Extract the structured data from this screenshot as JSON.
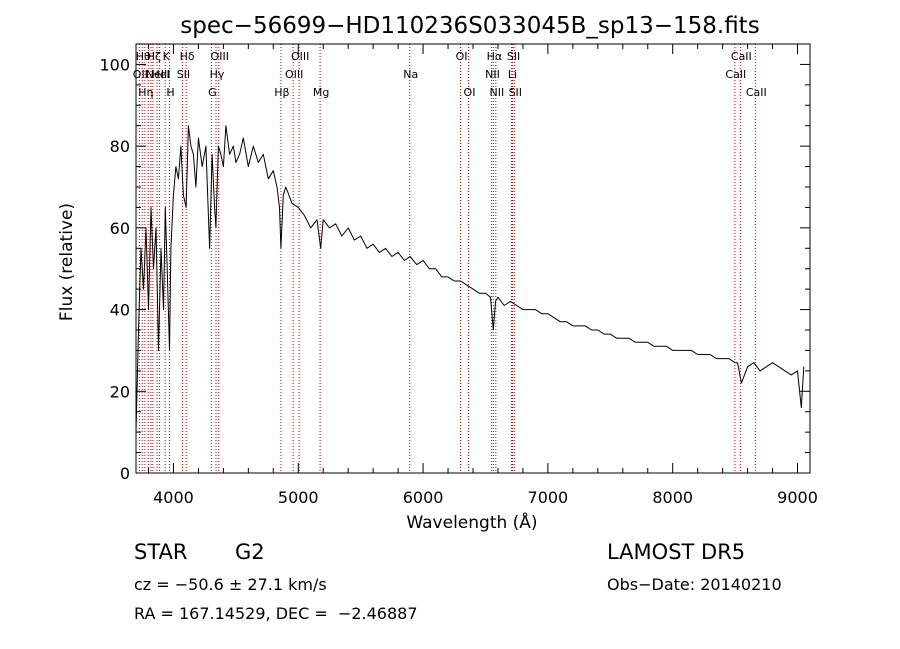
{
  "chart_data": {
    "type": "line",
    "title": "spec−56699−HD110236S033045B_sp13−158.fits",
    "xlabel": "Wavelength (Å)",
    "ylabel": "Flux (relative)",
    "xlim": [
      3700,
      9100
    ],
    "ylim": [
      0,
      105
    ],
    "x_ticks": [
      4000,
      5000,
      6000,
      7000,
      8000,
      9000
    ],
    "y_ticks": [
      0,
      20,
      40,
      60,
      80,
      100
    ],
    "grid": false,
    "line_color": "#000000",
    "marker_color": "#cc0000",
    "series": [
      {
        "x": [
          3700,
          3720,
          3740,
          3760,
          3780,
          3800,
          3820,
          3840,
          3860,
          3880,
          3900,
          3920,
          3935,
          3950,
          3968,
          3980,
          4000,
          4020,
          4040,
          4060,
          4080,
          4101,
          4120,
          4140,
          4160,
          4180,
          4200,
          4230,
          4260,
          4290,
          4310,
          4330,
          4340,
          4360,
          4380,
          4400,
          4420,
          4450,
          4480,
          4500,
          4530,
          4560,
          4600,
          4640,
          4680,
          4720,
          4740,
          4760,
          4800,
          4830,
          4850,
          4861,
          4880,
          4900,
          4950,
          5000,
          5050,
          5100,
          5150,
          5180,
          5200,
          5250,
          5300,
          5350,
          5400,
          5450,
          5500,
          5550,
          5600,
          5650,
          5700,
          5750,
          5800,
          5850,
          5895,
          5950,
          6000,
          6050,
          6100,
          6150,
          6200,
          6250,
          6300,
          6350,
          6400,
          6450,
          6500,
          6540,
          6563,
          6580,
          6600,
          6650,
          6700,
          6750,
          6800,
          6850,
          6900,
          6950,
          7000,
          7050,
          7100,
          7150,
          7200,
          7250,
          7300,
          7350,
          7400,
          7450,
          7500,
          7550,
          7600,
          7650,
          7700,
          7750,
          7800,
          7850,
          7900,
          7950,
          8000,
          8050,
          8100,
          8150,
          8200,
          8250,
          8300,
          8350,
          8400,
          8450,
          8500,
          8520,
          8550,
          8600,
          8650,
          8700,
          8750,
          8800,
          8850,
          8900,
          8950,
          9000,
          9030,
          9050
        ],
        "y": [
          10,
          35,
          55,
          45,
          60,
          40,
          65,
          50,
          60,
          30,
          55,
          40,
          65,
          50,
          30,
          55,
          68,
          75,
          72,
          80,
          68,
          65,
          85,
          80,
          78,
          70,
          82,
          75,
          80,
          55,
          78,
          65,
          60,
          80,
          78,
          75,
          85,
          78,
          80,
          76,
          78,
          82,
          75,
          80,
          76,
          78,
          75,
          72,
          74,
          70,
          65,
          55,
          68,
          70,
          66,
          65,
          63,
          60,
          62,
          55,
          62,
          60,
          61,
          58,
          60,
          57,
          58,
          55,
          56,
          54,
          55,
          53,
          54,
          52,
          53,
          51,
          52,
          50,
          50,
          48,
          48,
          47,
          47,
          46,
          45,
          44,
          44,
          43,
          35,
          42,
          43,
          41,
          42,
          41,
          40,
          40,
          40,
          39,
          39,
          38,
          37,
          37,
          36,
          36,
          36,
          35,
          35,
          34,
          34,
          33,
          33,
          33,
          32,
          32,
          32,
          31,
          31,
          31,
          30,
          30,
          30,
          30,
          29,
          29,
          29,
          28,
          28,
          28,
          27,
          27,
          22,
          26,
          27,
          25,
          26,
          27,
          26,
          25,
          24,
          25,
          16,
          26
        ]
      }
    ],
    "line_markers": [
      {
        "x": 3727,
        "label": "OII",
        "row": 1
      },
      {
        "x": 3750,
        "label": "Hθ",
        "row": 0
      },
      {
        "x": 3771,
        "label": "Hη",
        "row": 2
      },
      {
        "x": 3798,
        "label": "",
        "row": 0
      },
      {
        "x": 3820,
        "label": "",
        "row": 0
      },
      {
        "x": 3835,
        "label": "Hζ",
        "row": 0
      },
      {
        "x": 3869,
        "label": "NeIII",
        "row": 1
      },
      {
        "x": 3889,
        "label": "HeI",
        "row": 1
      },
      {
        "x": 3934,
        "label": "K",
        "row": 0
      },
      {
        "x": 3969,
        "label": "H",
        "row": 2
      },
      {
        "x": 4072,
        "label": "SII",
        "row": 1
      },
      {
        "x": 4102,
        "label": "Hδ",
        "row": 0
      },
      {
        "x": 4304,
        "label": "G",
        "row": 2
      },
      {
        "x": 4341,
        "label": "Hγ",
        "row": 1
      },
      {
        "x": 4363,
        "label": "OIII",
        "row": 0
      },
      {
        "x": 4861,
        "label": "Hβ",
        "row": 2
      },
      {
        "x": 4959,
        "label": "OIII",
        "row": 1
      },
      {
        "x": 5007,
        "label": "OIII",
        "row": 0
      },
      {
        "x": 5175,
        "label": "Mg",
        "row": 2
      },
      {
        "x": 5893,
        "label": "Na",
        "row": 1
      },
      {
        "x": 6300,
        "label": "OI",
        "row": 0
      },
      {
        "x": 6364,
        "label": "OI",
        "row": 2
      },
      {
        "x": 6548,
        "label": "NII",
        "row": 1
      },
      {
        "x": 6563,
        "label": "Hα",
        "row": 0
      },
      {
        "x": 6583,
        "label": "NII",
        "row": 2
      },
      {
        "x": 6708,
        "label": "Li",
        "row": 1
      },
      {
        "x": 6717,
        "label": "SII",
        "row": 0
      },
      {
        "x": 6731,
        "label": "SII",
        "row": 2
      },
      {
        "x": 8498,
        "label": "CaII",
        "row": 1
      },
      {
        "x": 8542,
        "label": "CaII",
        "row": 0
      },
      {
        "x": 8662,
        "label": "CaII",
        "row": 2
      }
    ]
  },
  "info": {
    "object_class": "STAR",
    "subclass": "G2",
    "survey": "LAMOST DR5",
    "redshift": "cz = −50.6 ± 27.1 km/s",
    "obs_date": "Obs−Date: 20140210",
    "coords": "RA = 167.14529, DEC =  −2.46887"
  }
}
